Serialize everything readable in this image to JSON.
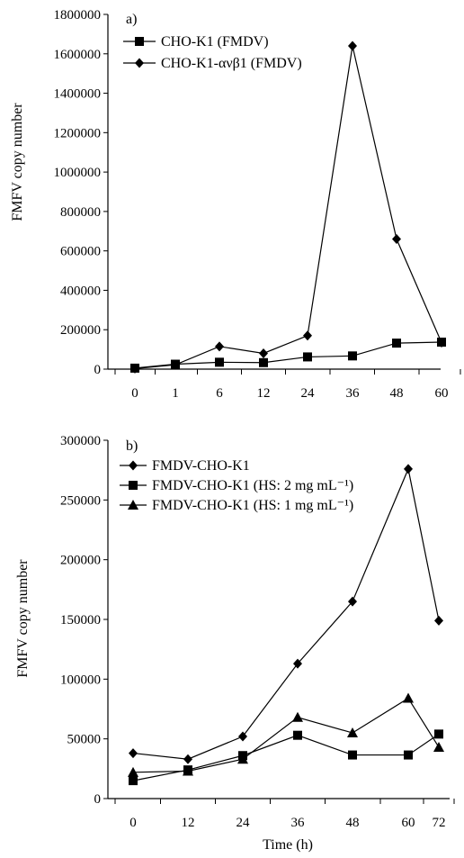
{
  "chart_data": [
    {
      "type": "line",
      "panel_label": "a)",
      "categories": [
        "0",
        "1",
        "6",
        "12",
        "24",
        "36",
        "48",
        "60"
      ],
      "series": [
        {
          "name": "CHO-K1 (FMDV)",
          "marker": "square",
          "values": [
            5000,
            25000,
            35000,
            33000,
            62000,
            67000,
            132000,
            137000
          ]
        },
        {
          "name": "CHO-K1-ανβ1 (FMDV)",
          "marker": "diamond",
          "values": [
            3000,
            22000,
            115000,
            80000,
            170000,
            1640000,
            660000,
            135000
          ]
        }
      ],
      "ylabel": "FMFV copy number",
      "xlabel": "",
      "ylim": [
        0,
        1800000
      ],
      "yticks": [
        "0",
        "200000",
        "400000",
        "600000",
        "800000",
        "1000000",
        "1200000",
        "1400000",
        "1600000",
        "1800000"
      ],
      "legend_position": "top-left"
    },
    {
      "type": "line",
      "panel_label": "b)",
      "categories": [
        "0",
        "12",
        "24",
        "36",
        "48",
        "60",
        "72"
      ],
      "series": [
        {
          "name": "FMDV-CHO-K1",
          "marker": "diamond",
          "values": [
            38000,
            33000,
            52000,
            113000,
            165000,
            276000,
            149000
          ]
        },
        {
          "name": "FMDV-CHO-K1 (HS: 2 mg mL⁻¹)",
          "marker": "square",
          "values": [
            15000,
            24000,
            36000,
            53000,
            36500,
            36500,
            54000
          ]
        },
        {
          "name": "FMDV-CHO-K1 (HS: 1 mg mL⁻¹)",
          "marker": "triangle",
          "values": [
            22000,
            23000,
            33000,
            68000,
            55000,
            84000,
            43000
          ]
        }
      ],
      "ylabel": "FMFV copy number",
      "xlabel": "Time (h)",
      "ylim": [
        0,
        300000
      ],
      "yticks": [
        "0",
        "50000",
        "100000",
        "150000",
        "200000",
        "250000",
        "300000"
      ],
      "legend_position": "top-left"
    }
  ]
}
